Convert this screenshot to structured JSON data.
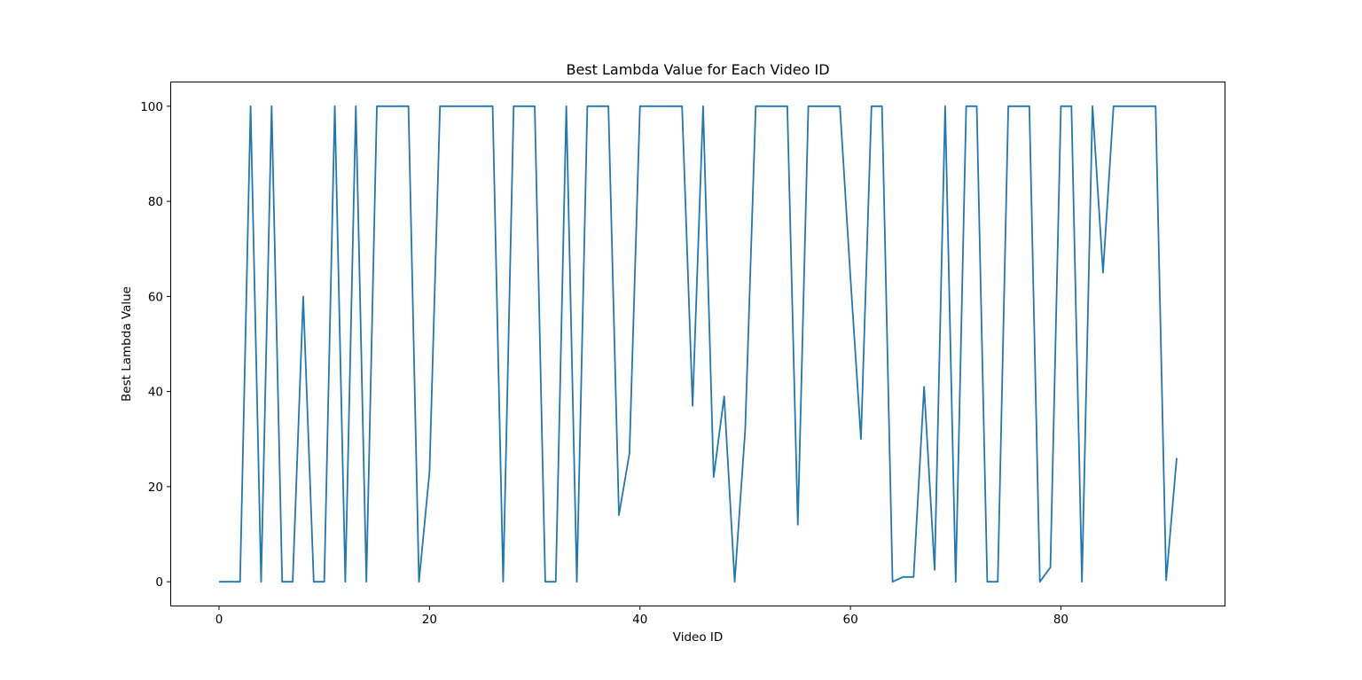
{
  "chart_data": {
    "type": "line",
    "title": "Best Lambda Value for Each Video ID",
    "xlabel": "Video ID",
    "ylabel": "Best Lambda Value",
    "xlim": [
      -4.55,
      95.55
    ],
    "ylim": [
      -5,
      105
    ],
    "xticks": [
      0,
      20,
      40,
      60,
      80
    ],
    "yticks": [
      0,
      20,
      40,
      60,
      80,
      100
    ],
    "grid": false,
    "line_color": "#1f77b4",
    "series": [
      {
        "x": [
          0,
          1,
          2,
          3,
          4,
          5,
          6,
          7,
          8,
          9,
          10,
          11,
          12,
          13,
          14,
          15,
          16,
          17,
          18,
          19,
          20,
          21,
          22,
          23,
          24,
          25,
          26,
          27,
          28,
          29,
          30,
          31,
          32,
          33,
          34,
          35,
          36,
          37,
          38,
          39,
          40,
          41,
          42,
          43,
          44,
          45,
          46,
          47,
          48,
          49,
          50,
          51,
          52,
          53,
          54,
          55,
          56,
          57,
          58,
          59,
          60,
          61,
          62,
          63,
          64,
          65,
          66,
          67,
          68,
          69,
          70,
          71,
          72,
          73,
          74,
          75,
          76,
          77,
          78,
          79,
          80,
          81,
          82,
          83,
          84,
          85,
          86,
          87,
          88,
          89,
          90,
          91
        ],
        "values": [
          0,
          0,
          0,
          100,
          0,
          100,
          0,
          0,
          60,
          0,
          0,
          100,
          0,
          100,
          0,
          100,
          100,
          100,
          100,
          0,
          23,
          100,
          100,
          100,
          100,
          100,
          100,
          0,
          100,
          100,
          100,
          0,
          0,
          100,
          0,
          100,
          100,
          100,
          14,
          27,
          100,
          100,
          100,
          100,
          100,
          37,
          100,
          22,
          39,
          0,
          32,
          100,
          100,
          100,
          100,
          12,
          100,
          100,
          100,
          100,
          64,
          30,
          100,
          100,
          0,
          1,
          1,
          41,
          2.5,
          100,
          0,
          100,
          100,
          0,
          0,
          100,
          100,
          100,
          0,
          3,
          100,
          100,
          0,
          100,
          65,
          100,
          100,
          100,
          100,
          100,
          0.3,
          26
        ]
      }
    ]
  }
}
